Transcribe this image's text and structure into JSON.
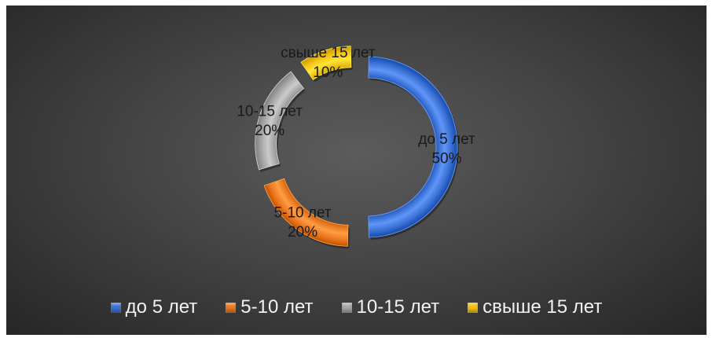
{
  "chart_data": {
    "type": "pie",
    "variant": "exploded-doughnut",
    "categories": [
      "до 5 лет",
      "5-10 лет",
      "10-15 лет",
      "свыше 15 лет"
    ],
    "values": [
      50,
      20,
      20,
      10
    ],
    "data_labels": [
      {
        "category": "до 5 лет",
        "percent": "50%"
      },
      {
        "category": "5-10 лет",
        "percent": "20%"
      },
      {
        "category": "10-15 лет",
        "percent": "20%"
      },
      {
        "category": "свыше 15 лет",
        "percent": "10%"
      }
    ],
    "colors": [
      "#3d72d6",
      "#ee7a22",
      "#a8a8a8",
      "#f4c214"
    ],
    "title": "",
    "legend_position": "bottom"
  },
  "legend": {
    "items": [
      {
        "label": "до 5 лет",
        "color": "#3d72d6"
      },
      {
        "label": "5-10 лет",
        "color": "#ee7a22"
      },
      {
        "label": "10-15 лет",
        "color": "#a8a8a8"
      },
      {
        "label": "свыше 15 лет",
        "color": "#f4c214"
      }
    ]
  },
  "background_color": "#404040"
}
